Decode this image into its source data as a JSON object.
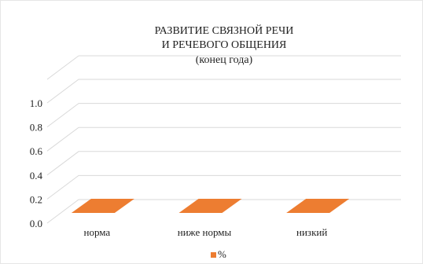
{
  "chart_data": {
    "type": "bar",
    "title": [
      "РАЗВИТИЕ СВЯЗНОЙ РЕЧИ",
      "И РЕЧЕВОГО ОБЩЕНИЯ",
      "(конец года)"
    ],
    "categories": [
      "норма",
      "ниже нормы",
      "низкий"
    ],
    "series": [
      {
        "name": "%",
        "values": [
          0,
          0,
          0
        ],
        "color": "#ED7D31"
      }
    ],
    "ylim": [
      0,
      1
    ],
    "y_ticks": [
      "0.0",
      "0.2",
      "0.4",
      "0.6",
      "0.8",
      "1.0"
    ],
    "grid": true,
    "legend": "bottom",
    "style": "3d"
  }
}
